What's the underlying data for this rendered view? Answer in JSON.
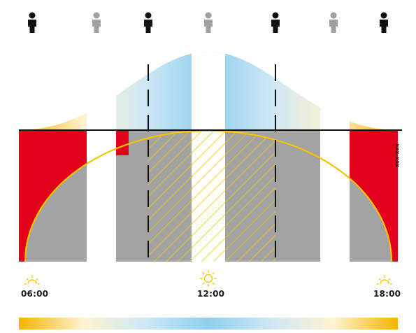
{
  "times": [
    {
      "id": "morning",
      "label": "06:00"
    },
    {
      "id": "noon",
      "label": "12:00"
    },
    {
      "id": "evening",
      "label": "18:00"
    }
  ],
  "side_label": "xxx-xxx",
  "people_icons": [
    "dark",
    "light",
    "dark",
    "light",
    "dark",
    "light",
    "dark"
  ],
  "icons": [
    "person-icon",
    "sunrise-icon",
    "sun-icon",
    "sunset-icon"
  ],
  "colors": {
    "red": "#e2001a",
    "gray": "#a3a3a3",
    "white": "#ffffff",
    "yellow": "#f7c400",
    "sky": "#93d1ee",
    "person_dark": "#111111",
    "person_light": "#a0a0a0",
    "line": "#111111"
  }
}
